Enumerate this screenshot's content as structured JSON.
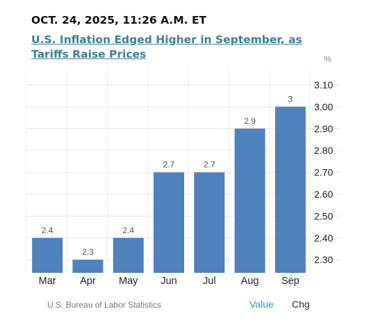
{
  "header": {
    "timestamp": "OCT. 24, 2025, 11:26 A.M. ET",
    "headline": "U.S. Inflation Edged Higher in September, as Tariffs Raise Prices"
  },
  "chart_data": {
    "type": "bar",
    "unit_label": "%",
    "categories": [
      "Mar",
      "Apr",
      "May",
      "Jun",
      "Jul",
      "Aug",
      "Sep"
    ],
    "values": [
      2.4,
      2.3,
      2.4,
      2.7,
      2.7,
      2.9,
      3.0
    ],
    "data_labels": [
      "2.4",
      "2.3",
      "2.4",
      "2.7",
      "2.7",
      "2.9",
      "3"
    ],
    "y_ticks": [
      "3.10",
      "3.00",
      "2.90",
      "2.80",
      "2.70",
      "2.60",
      "2.50",
      "2.40",
      "2.30"
    ],
    "y_tick_values": [
      3.1,
      3.0,
      2.9,
      2.8,
      2.7,
      2.6,
      2.5,
      2.4,
      2.3
    ],
    "ylim": [
      2.24,
      3.17
    ],
    "bar_color": "#4f81bd",
    "grid": "horizontal",
    "y_axis_position": "right"
  },
  "footer": {
    "source": "U.S. Bureau of Labor Statistics",
    "value_label": "Value",
    "chg_label": "Chg"
  }
}
